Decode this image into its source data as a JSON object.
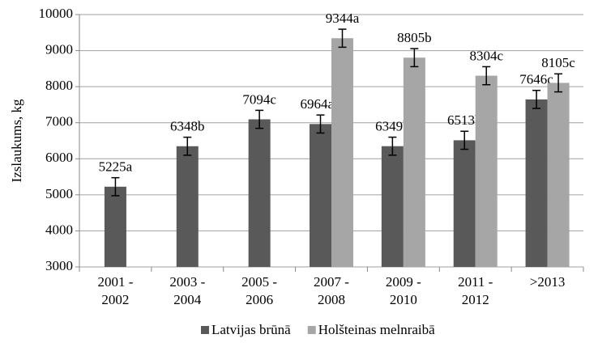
{
  "chart_data": {
    "type": "bar",
    "ylabel": "Izslaukums, kg",
    "categories": [
      "2001 - 2002",
      "2003 - 2004",
      "2005 - 2006",
      "2007 - 2008",
      "2009 - 2010",
      "2011 - 2012",
      ">2013"
    ],
    "series": [
      {
        "name": "Latvijas brūnā",
        "color": "#595959",
        "values": [
          5225,
          6348,
          7094,
          6964,
          6349,
          6513,
          7646
        ],
        "errors": [
          250,
          250,
          250,
          250,
          250,
          250,
          250
        ],
        "value_labels": [
          "5225a",
          "6348b",
          "7094c",
          "6964ab",
          "6349b",
          "6513b",
          "7646c"
        ]
      },
      {
        "name": "Holšteinas melnraibā",
        "color": "#a6a6a6",
        "values": [
          null,
          null,
          null,
          9344,
          8805,
          8304,
          8105
        ],
        "errors": [
          null,
          null,
          null,
          250,
          250,
          250,
          250
        ],
        "value_labels": [
          null,
          null,
          null,
          "9344a",
          "8805b",
          "8304c",
          "8105c"
        ]
      }
    ],
    "ylim": [
      3000,
      10000
    ],
    "yticks": [
      3000,
      4000,
      5000,
      6000,
      7000,
      8000,
      9000,
      10000
    ],
    "grid": true,
    "legend": "bottom"
  }
}
